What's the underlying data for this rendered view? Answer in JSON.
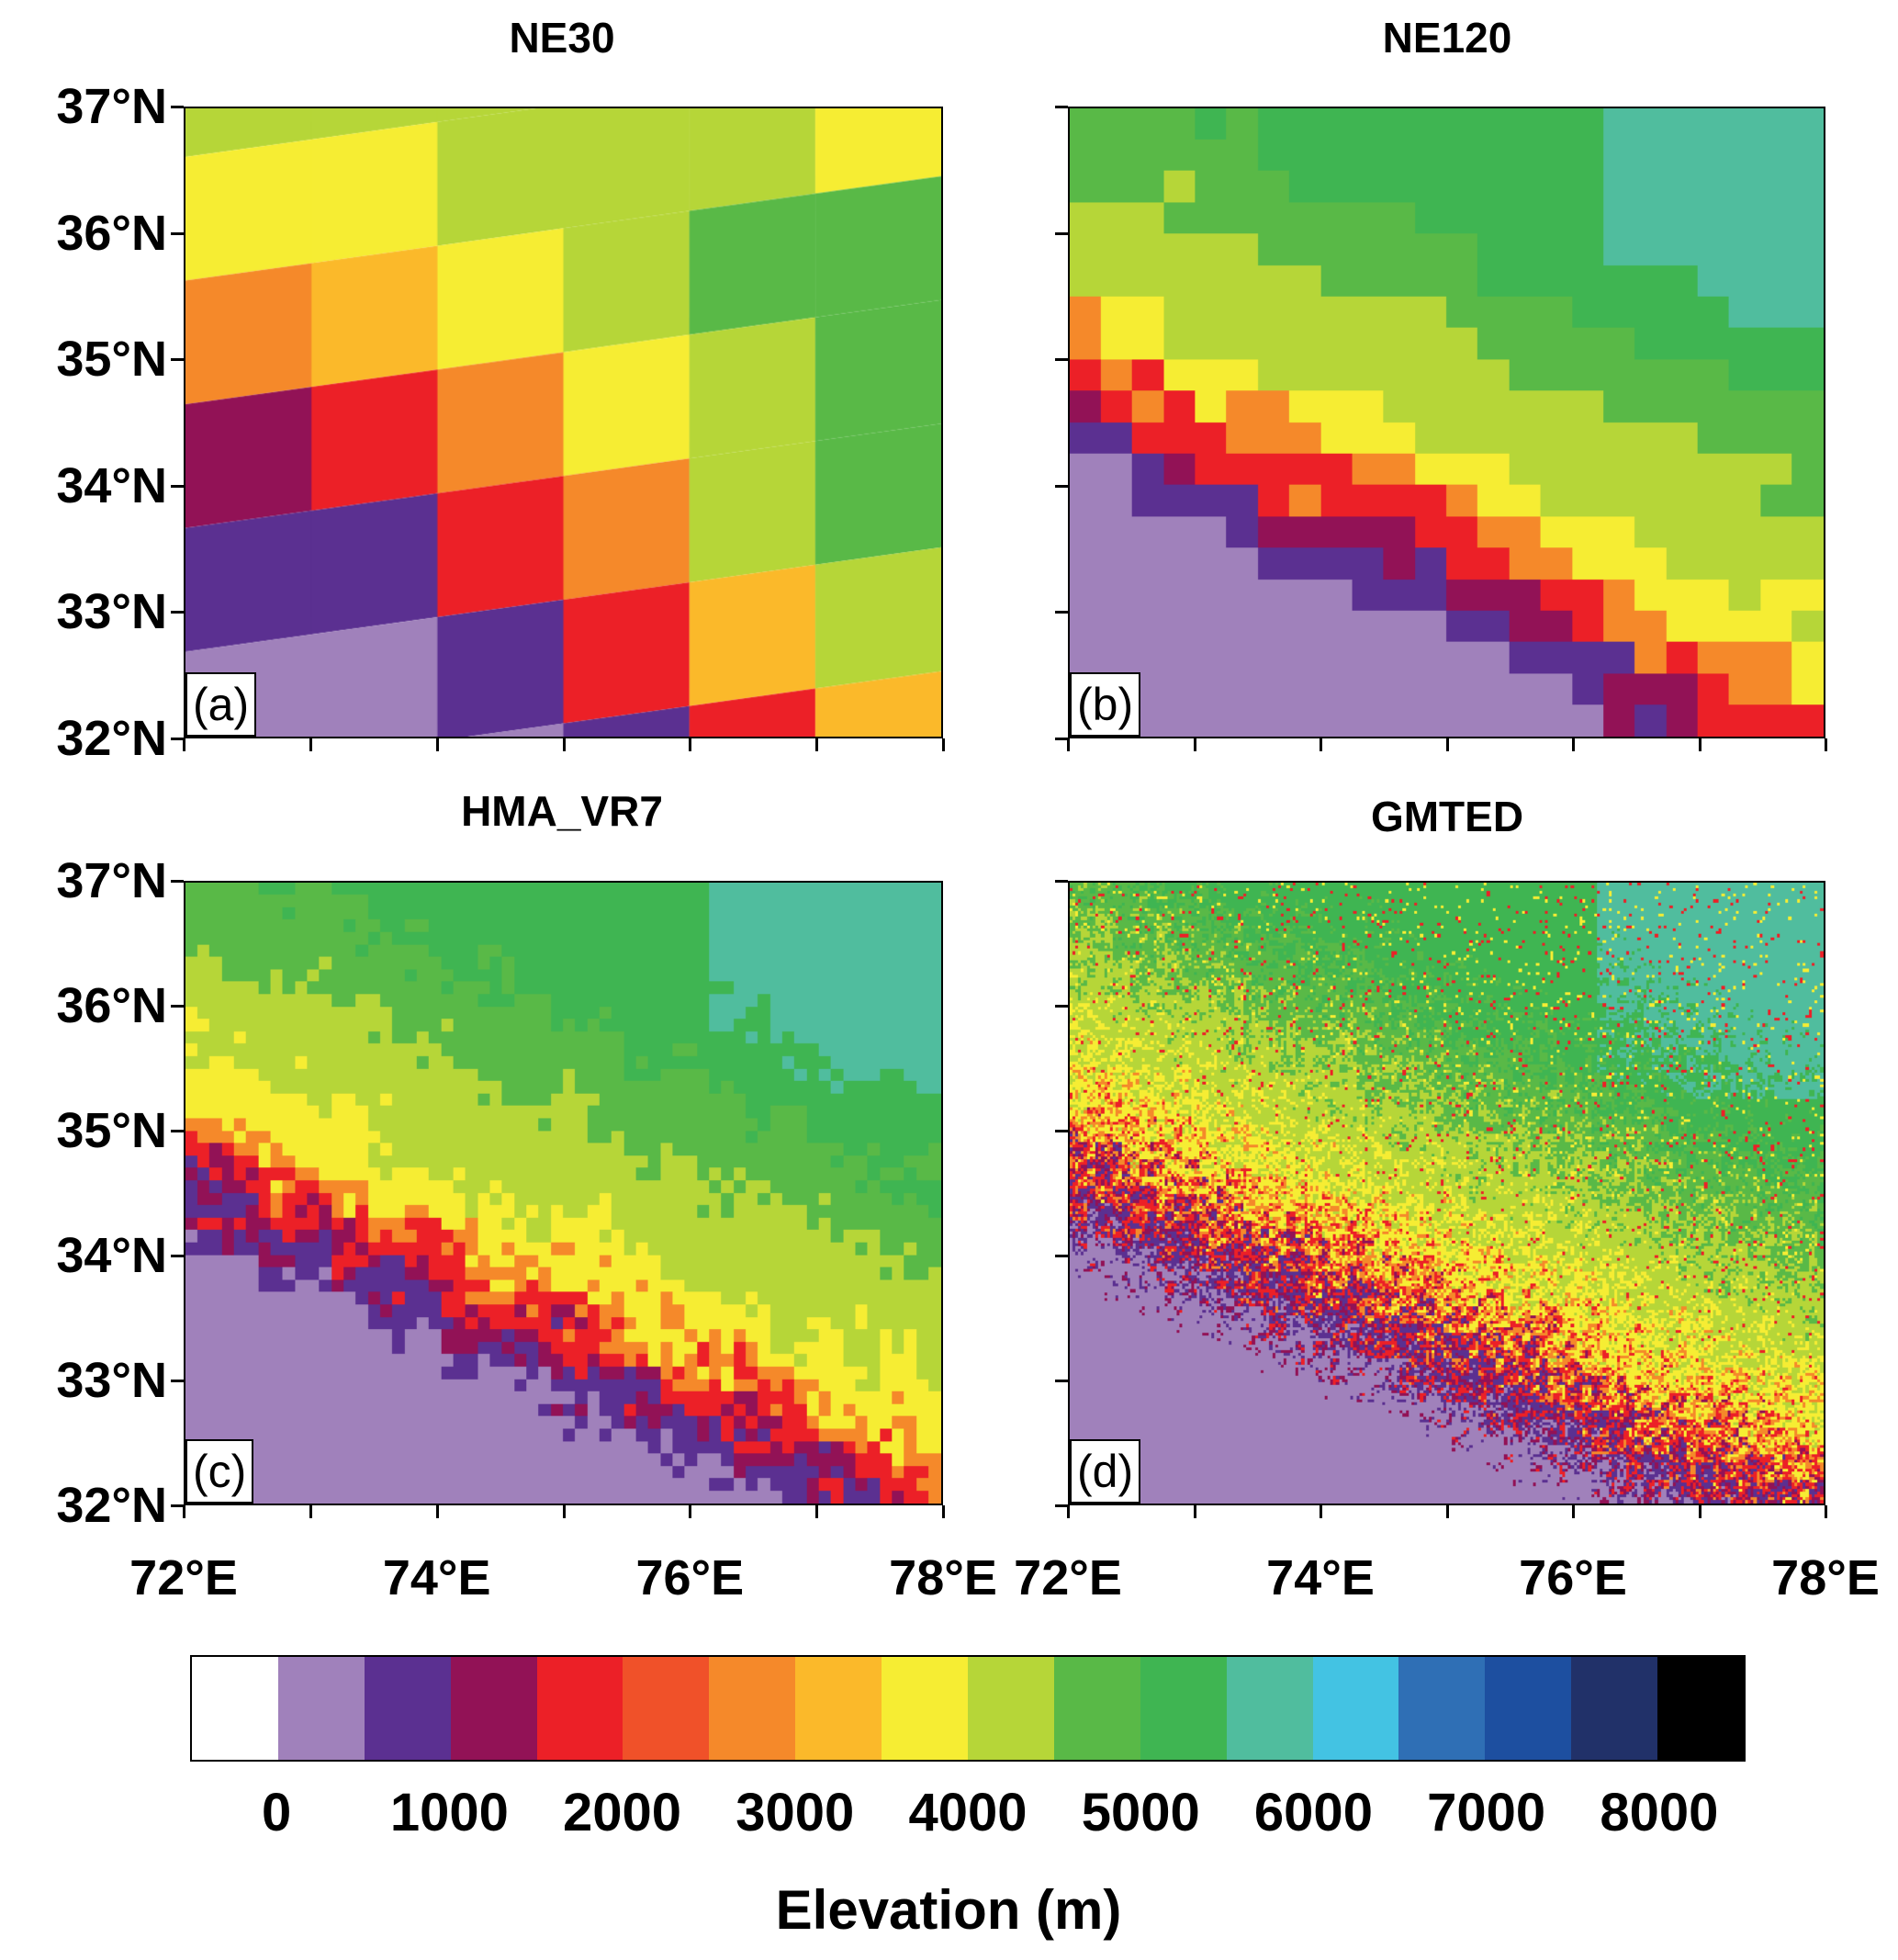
{
  "panels": [
    {
      "id": "a",
      "title": "NE30",
      "label": "(a)"
    },
    {
      "id": "b",
      "title": "NE120",
      "label": "(b)"
    },
    {
      "id": "c",
      "title": "HMA_VR7",
      "label": "(c)"
    },
    {
      "id": "d",
      "title": "GMTED",
      "label": "(d)"
    }
  ],
  "axes": {
    "y_labels": [
      "37°N",
      "36°N",
      "35°N",
      "34°N",
      "33°N",
      "32°N"
    ],
    "x_labels": [
      "72°E",
      "74°E",
      "76°E",
      "78°E"
    ],
    "lat_range": [
      32,
      37
    ],
    "lon_range": [
      72,
      78
    ]
  },
  "colorbar": {
    "title": "Elevation (m)",
    "tick_labels": [
      "0",
      "1000",
      "2000",
      "3000",
      "4000",
      "5000",
      "6000",
      "7000",
      "8000"
    ],
    "interval_m": 500,
    "colors": [
      "#ffffff",
      "#a081bb",
      "#5b3091",
      "#921256",
      "#ec2027",
      "#f05129",
      "#f5892a",
      "#fbb92a",
      "#f6ed33",
      "#b6d638",
      "#59b947",
      "#3fb552",
      "#50bd9e",
      "#43c3e3",
      "#2f6fb5",
      "#1d4fa0",
      "#213169",
      "#000000"
    ]
  },
  "ne30_grid_classes": [
    [
      9,
      8,
      6,
      3,
      2,
      1,
      1
    ],
    [
      9,
      8,
      7,
      4,
      2,
      1,
      1
    ],
    [
      9,
      9,
      8,
      6,
      4,
      2,
      1
    ],
    [
      9,
      9,
      9,
      8,
      6,
      4,
      2
    ],
    [
      9,
      9,
      10,
      9,
      9,
      7,
      4
    ],
    [
      8,
      8,
      10,
      10,
      10,
      9,
      7
    ]
  ]
}
